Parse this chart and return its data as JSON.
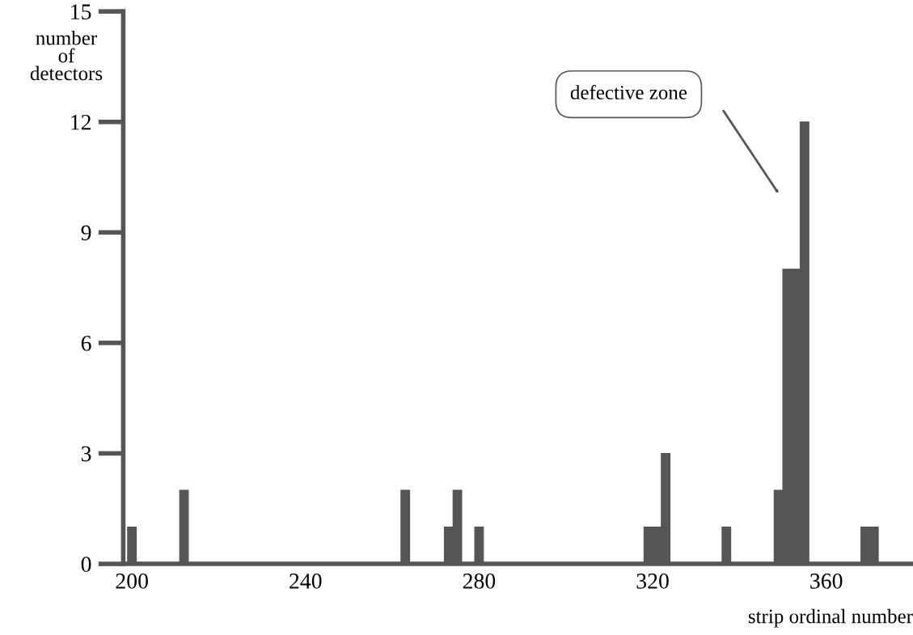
{
  "chart_data": {
    "type": "histogram",
    "bins": [
      199,
      201,
      211,
      213,
      262,
      264,
      272,
      274,
      276,
      279,
      281,
      318,
      320,
      322,
      324,
      336,
      338,
      348,
      350,
      352,
      354,
      356,
      368,
      370,
      372
    ],
    "values": [
      1,
      0,
      2,
      0,
      2,
      0,
      1,
      2,
      0,
      1,
      0,
      1,
      1,
      3,
      0,
      1,
      0,
      2,
      8,
      8,
      12,
      0,
      1,
      1
    ],
    "color": "#555555",
    "xlim": [
      198,
      380
    ],
    "xticks": [
      200,
      240,
      280,
      320,
      360
    ],
    "ylim": [
      0,
      15
    ],
    "yticks": [
      0,
      3,
      6,
      9,
      12,
      15
    ],
    "xlabel": "strip ordinal number",
    "ylabel": "number\nof\ndetectors",
    "annotations": [
      "defective zone"
    ],
    "grid": false,
    "legend": false
  }
}
